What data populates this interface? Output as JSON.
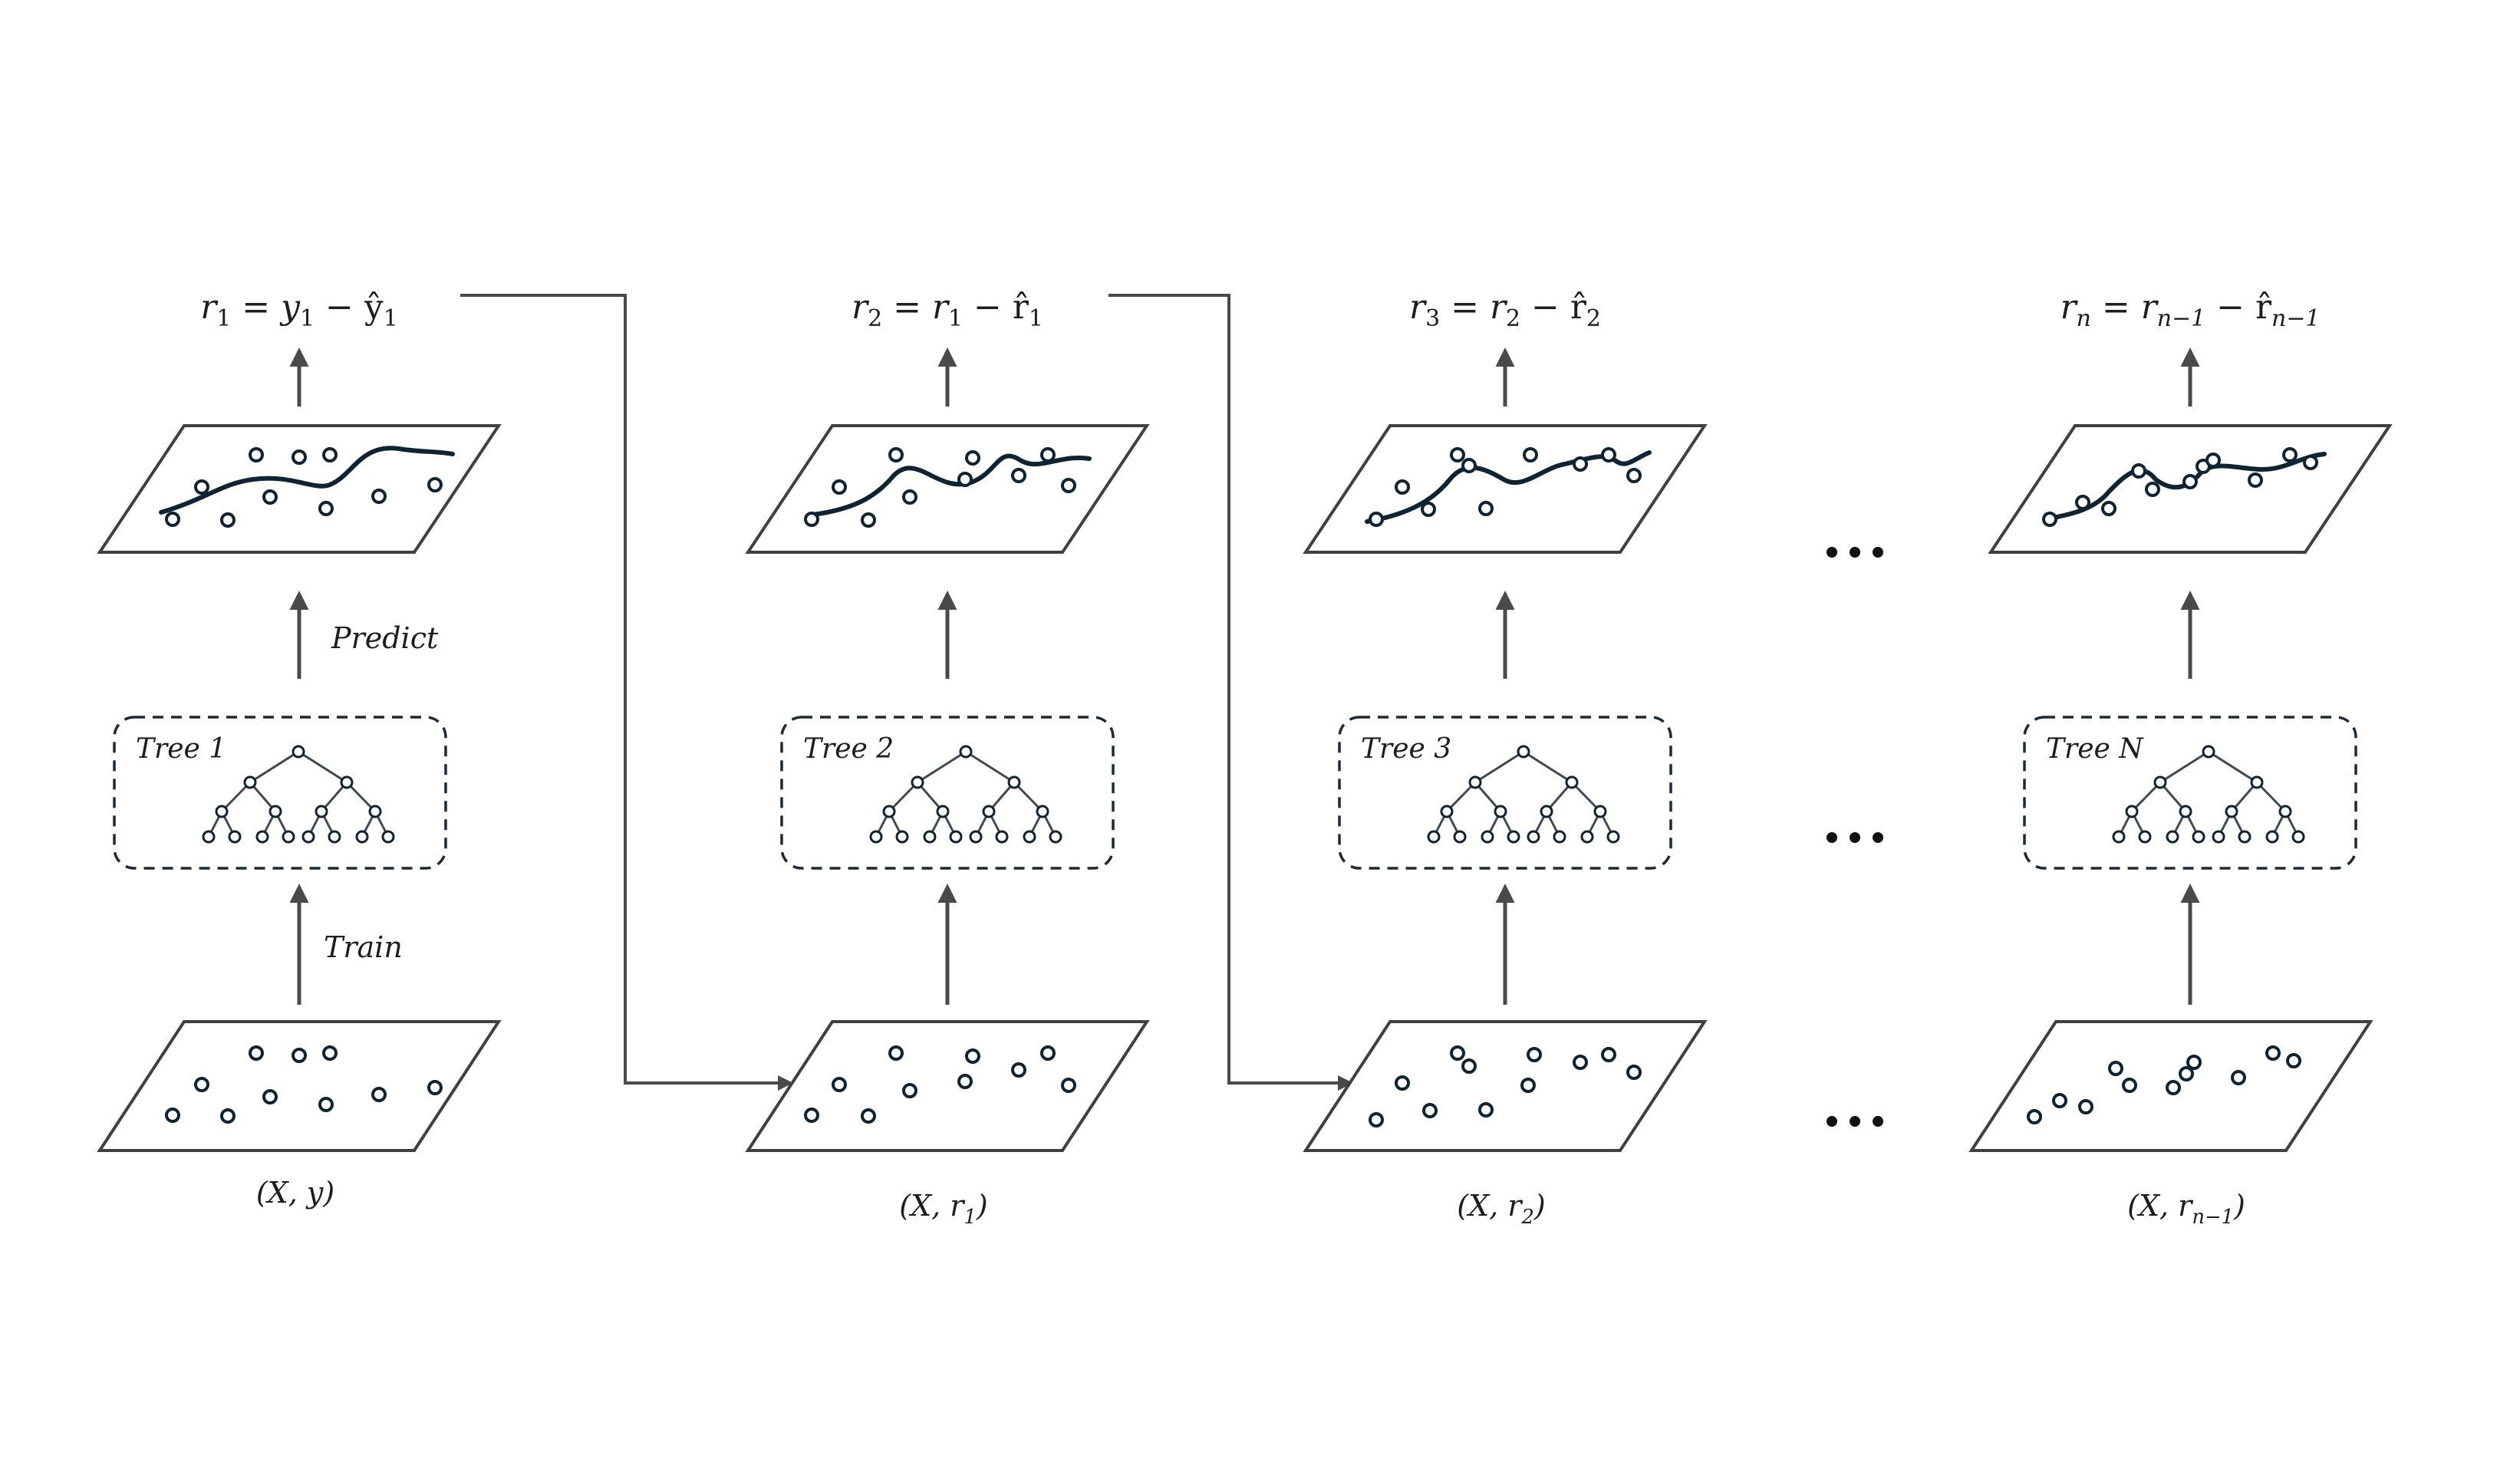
{
  "columns": [
    {
      "formula": {
        "lhs": "r",
        "lhs_sub": "1",
        "rhs1": "y",
        "rhs1_sub": "1",
        "rhs2": "ŷ",
        "rhs2_sub": "1",
        "rhs1_italic": true,
        "rhs2_italic": false
      },
      "tree_label": "Tree 1",
      "data_label": {
        "main": "(X, y)",
        "sub": ""
      },
      "predict_label": "Predict",
      "train_label": "Train"
    },
    {
      "formula": {
        "lhs": "r",
        "lhs_sub": "2",
        "rhs1": "r",
        "rhs1_sub": "1",
        "rhs2": "r̂",
        "rhs2_sub": "1",
        "rhs1_italic": true,
        "rhs2_italic": false
      },
      "tree_label": "Tree 2",
      "data_label": {
        "main": "(X, r",
        "sub": "1",
        "close": ")"
      }
    },
    {
      "formula": {
        "lhs": "r",
        "lhs_sub": "3",
        "rhs1": "r",
        "rhs1_sub": "2",
        "rhs2": "r̂",
        "rhs2_sub": "2",
        "rhs1_italic": true,
        "rhs2_italic": false
      },
      "tree_label": "Tree 3",
      "data_label": {
        "main": "(X, r",
        "sub": "2",
        "close": ")"
      }
    },
    {
      "formula": {
        "lhs": "r",
        "lhs_sub": "n",
        "rhs1": "r",
        "rhs1_sub": "n−1",
        "rhs2": "r̂",
        "rhs2_sub": "n−1",
        "rhs1_italic": true,
        "rhs2_italic": false
      },
      "tree_label": "Tree N",
      "data_label": {
        "main": "(X, r",
        "sub": "n−1",
        "close": ")"
      }
    }
  ],
  "operators": {
    "equals": "=",
    "minus": "−"
  },
  "ellipsis": "•••",
  "colors": {
    "ink": "#0f2433",
    "arrow": "#4a4a4a",
    "plane": "#404040"
  }
}
